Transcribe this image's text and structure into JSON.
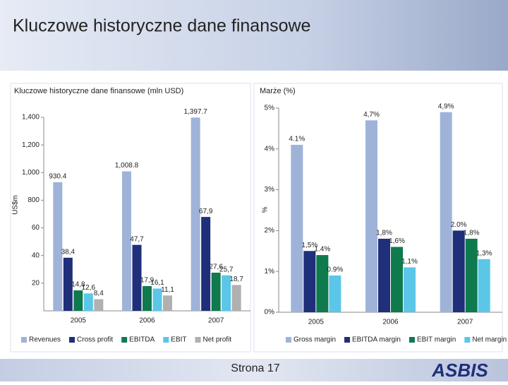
{
  "header": {
    "title": "Kluczowe historyczne dane finansowe"
  },
  "footer": {
    "page": "Strona 17",
    "logo": "ASBIS"
  },
  "chart_data": [
    {
      "type": "bar",
      "title": "Kluczowe historyczne dane finansowe (mln USD)",
      "y_label": "US$m",
      "categories": [
        "2005",
        "2006",
        "2007"
      ],
      "ylim": [
        0,
        140
      ],
      "yticks": [
        20,
        40,
        60
      ],
      "y2lim": [
        0,
        1400
      ],
      "y2ticks": [
        800,
        {
          "value": 1000,
          "label": "1,000"
        },
        {
          "value": 1200,
          "label": "1,200"
        },
        {
          "value": 1400,
          "label": "1,400"
        }
      ],
      "series": [
        {
          "name": "Revenues",
          "color": "#9fb3d9",
          "axis": "y2",
          "values": [
            930.4,
            1008.8,
            1397.7
          ],
          "value_labels": [
            "930.4",
            "1,008.8",
            "1,397.7"
          ]
        },
        {
          "name": "Cross profit",
          "color": "#1f2f7a",
          "values": [
            38.4,
            47.7,
            67.9
          ],
          "value_labels": [
            "38,4",
            "47,7",
            "67,9"
          ]
        },
        {
          "name": "EBITDA",
          "color": "#0e7a4e",
          "values": [
            14.8,
            17.9,
            27.6
          ],
          "value_labels": [
            "14,8",
            "17,9",
            "27,6"
          ]
        },
        {
          "name": "EBIT",
          "color": "#5bc6e8",
          "values": [
            12.6,
            16.1,
            25.7
          ],
          "value_labels": [
            "12,6",
            "16,1",
            "25,7"
          ]
        },
        {
          "name": "Net profit",
          "color": "#b0b0b0",
          "values": [
            8.4,
            11.1,
            18.7
          ],
          "value_labels": [
            "8,4",
            "11,1",
            "18,7"
          ]
        }
      ]
    },
    {
      "type": "bar",
      "title": "Marże (%)",
      "y_label": "%",
      "categories": [
        "2005",
        "2006",
        "2007"
      ],
      "ylim": [
        0,
        5
      ],
      "yticks": [
        {
          "value": 0,
          "label": "0%"
        },
        {
          "value": 1,
          "label": "1%"
        },
        {
          "value": 2,
          "label": "2%"
        },
        {
          "value": 3,
          "label": "3%"
        },
        {
          "value": 4,
          "label": "4%"
        },
        {
          "value": 5,
          "label": "5%"
        }
      ],
      "series": [
        {
          "name": "Gross margin",
          "color": "#9fb3d9",
          "values": [
            4.1,
            4.7,
            4.9
          ],
          "value_labels": [
            "4.1%",
            "4,7%",
            "4,9%"
          ]
        },
        {
          "name": "EBITDA margin",
          "color": "#1f2f7a",
          "values": [
            1.5,
            1.8,
            2.0
          ],
          "value_labels": [
            "1,5%",
            "1,8%",
            "2.0%"
          ]
        },
        {
          "name": "EBIT margin",
          "color": "#0e7a4e",
          "values": [
            1.4,
            1.6,
            1.8
          ],
          "value_labels": [
            "1.4%",
            "1,6%",
            "1,8%"
          ]
        },
        {
          "name": "Net margin",
          "color": "#5bc6e8",
          "values": [
            0.9,
            1.1,
            1.3
          ],
          "value_labels": [
            "0.9%",
            "1,1%",
            "1,3%"
          ]
        }
      ]
    }
  ]
}
